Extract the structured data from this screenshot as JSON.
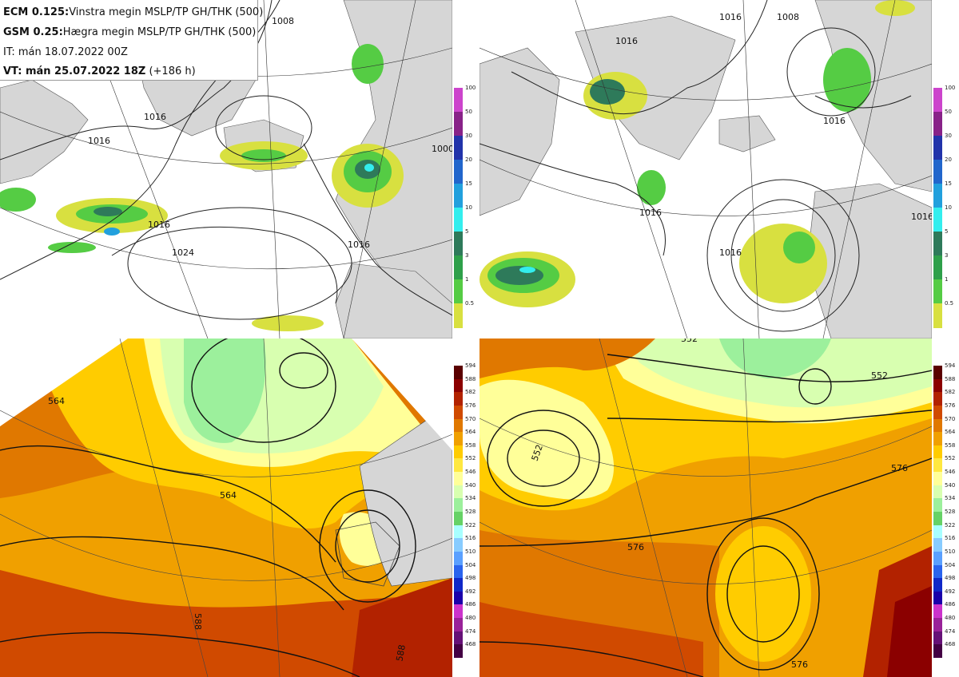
{
  "header": {
    "ecm_model": "ECM 0.125:",
    "ecm_desc": "Vinstra megin MSLP/TP GH/THK (500)",
    "gsm_model": "GSM 0.25:",
    "gsm_desc": "Hægra megin MSLP/TP GH/THK (500)",
    "init_time": "IT: mán 18.07.2022 00Z",
    "valid_label": "VT: mán 25.07.2022 18Z",
    "valid_offset": "(+186 h)"
  },
  "precip_colorbar": {
    "ticks": [
      "100",
      "50",
      "30",
      "20",
      "15",
      "10",
      "5",
      "3",
      "1",
      "0.5"
    ],
    "colors": [
      "#cc44cc",
      "#882288",
      "#2233aa",
      "#2266cc",
      "#22a0dd",
      "#33eeee",
      "#2e7a5a",
      "#2ea04a",
      "#55cc44",
      "#d8e040"
    ]
  },
  "thickness_colorbar": {
    "ticks": [
      "594",
      "588",
      "582",
      "576",
      "570",
      "564",
      "558",
      "552",
      "546",
      "540",
      "534",
      "528",
      "522",
      "516",
      "510",
      "504",
      "498",
      "492",
      "486",
      "480",
      "474",
      "468"
    ],
    "colors": [
      "#5a0000",
      "#8b0000",
      "#b22200",
      "#d04a00",
      "#e07800",
      "#f0a000",
      "#ffcc00",
      "#ffe840",
      "#ffff99",
      "#d8ffb0",
      "#9cf09c",
      "#66d266",
      "#a8ffff",
      "#88ccff",
      "#5aa0ff",
      "#2a64ee",
      "#1028c8",
      "#1a00aa",
      "#cc33cc",
      "#992299",
      "#661177",
      "#440044"
    ]
  },
  "maps": {
    "tl": {
      "isobars": [
        "1008",
        "1016",
        "1016",
        "1024",
        "1016",
        "1016",
        "1000"
      ]
    },
    "tr": {
      "isobars": [
        "1008",
        "1016",
        "1016",
        "1016",
        "1016",
        "1016",
        "1016"
      ]
    },
    "bl": {
      "contours": [
        "564",
        "564",
        "588",
        "588"
      ]
    },
    "br": {
      "contours": [
        "552",
        "552",
        "552",
        "576",
        "576",
        "576"
      ]
    }
  }
}
